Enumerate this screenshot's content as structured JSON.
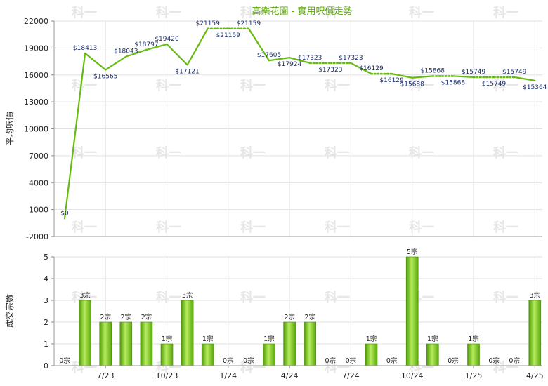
{
  "chart_data": [
    {
      "type": "line",
      "title": "高樂花園 - 實用呎價走勢",
      "ylabel": "平均呎價",
      "ylim": [
        -2000,
        22000
      ],
      "yticks": [
        -2000,
        1000,
        4000,
        7000,
        10000,
        13000,
        16000,
        19000,
        22000
      ],
      "grid": true,
      "color": "#66bb11",
      "values": [
        0,
        18413,
        16565,
        18043,
        18797,
        19420,
        17121,
        21159,
        21159,
        21159,
        17605,
        17924,
        17323,
        17323,
        17323,
        16129,
        16129,
        15688,
        15868,
        15868,
        15749,
        15749,
        15749,
        15364
      ],
      "labels": [
        "$0",
        "$18413",
        "$16565",
        "$18043",
        "$18797",
        "$19420",
        "$17121",
        "$21159",
        "$21159",
        "$21159",
        "$17605",
        "$17924",
        "$17323",
        "$17323",
        "$17323",
        "$16129",
        "$16129",
        "$15688",
        "$15868",
        "$15868",
        "$15749",
        "$15749",
        "$15749",
        "$15364"
      ],
      "dotted_segments": [
        [
          7,
          9
        ],
        [
          12,
          14
        ],
        [
          15,
          16
        ],
        [
          18,
          19
        ],
        [
          20,
          22
        ]
      ]
    },
    {
      "type": "bar",
      "ylabel": "成交宗數",
      "ylim": [
        0,
        5
      ],
      "yticks": [
        0,
        1,
        2,
        3,
        4,
        5
      ],
      "grid": true,
      "color": "#66bb11",
      "values": [
        0,
        3,
        2,
        2,
        2,
        1,
        3,
        1,
        0,
        0,
        1,
        2,
        2,
        0,
        0,
        1,
        0,
        5,
        1,
        0,
        1,
        0,
        0,
        3
      ],
      "labels": [
        "0宗",
        "3宗",
        "2宗",
        "2宗",
        "2宗",
        "1宗",
        "3宗",
        "1宗",
        "0宗",
        "0宗",
        "1宗",
        "2宗",
        "2宗",
        "0宗",
        "0宗",
        "1宗",
        "0宗",
        "5宗",
        "1宗",
        "0宗",
        "1宗",
        "0宗",
        "0宗",
        "3宗"
      ],
      "categories": [
        "",
        "",
        "7/23",
        "",
        "",
        "10/23",
        "",
        "",
        "1/24",
        "",
        "",
        "4/24",
        "",
        "",
        "7/24",
        "",
        "",
        "10/24",
        "",
        "",
        "1/25",
        "",
        "",
        "4/25"
      ]
    }
  ],
  "watermark": "科一"
}
